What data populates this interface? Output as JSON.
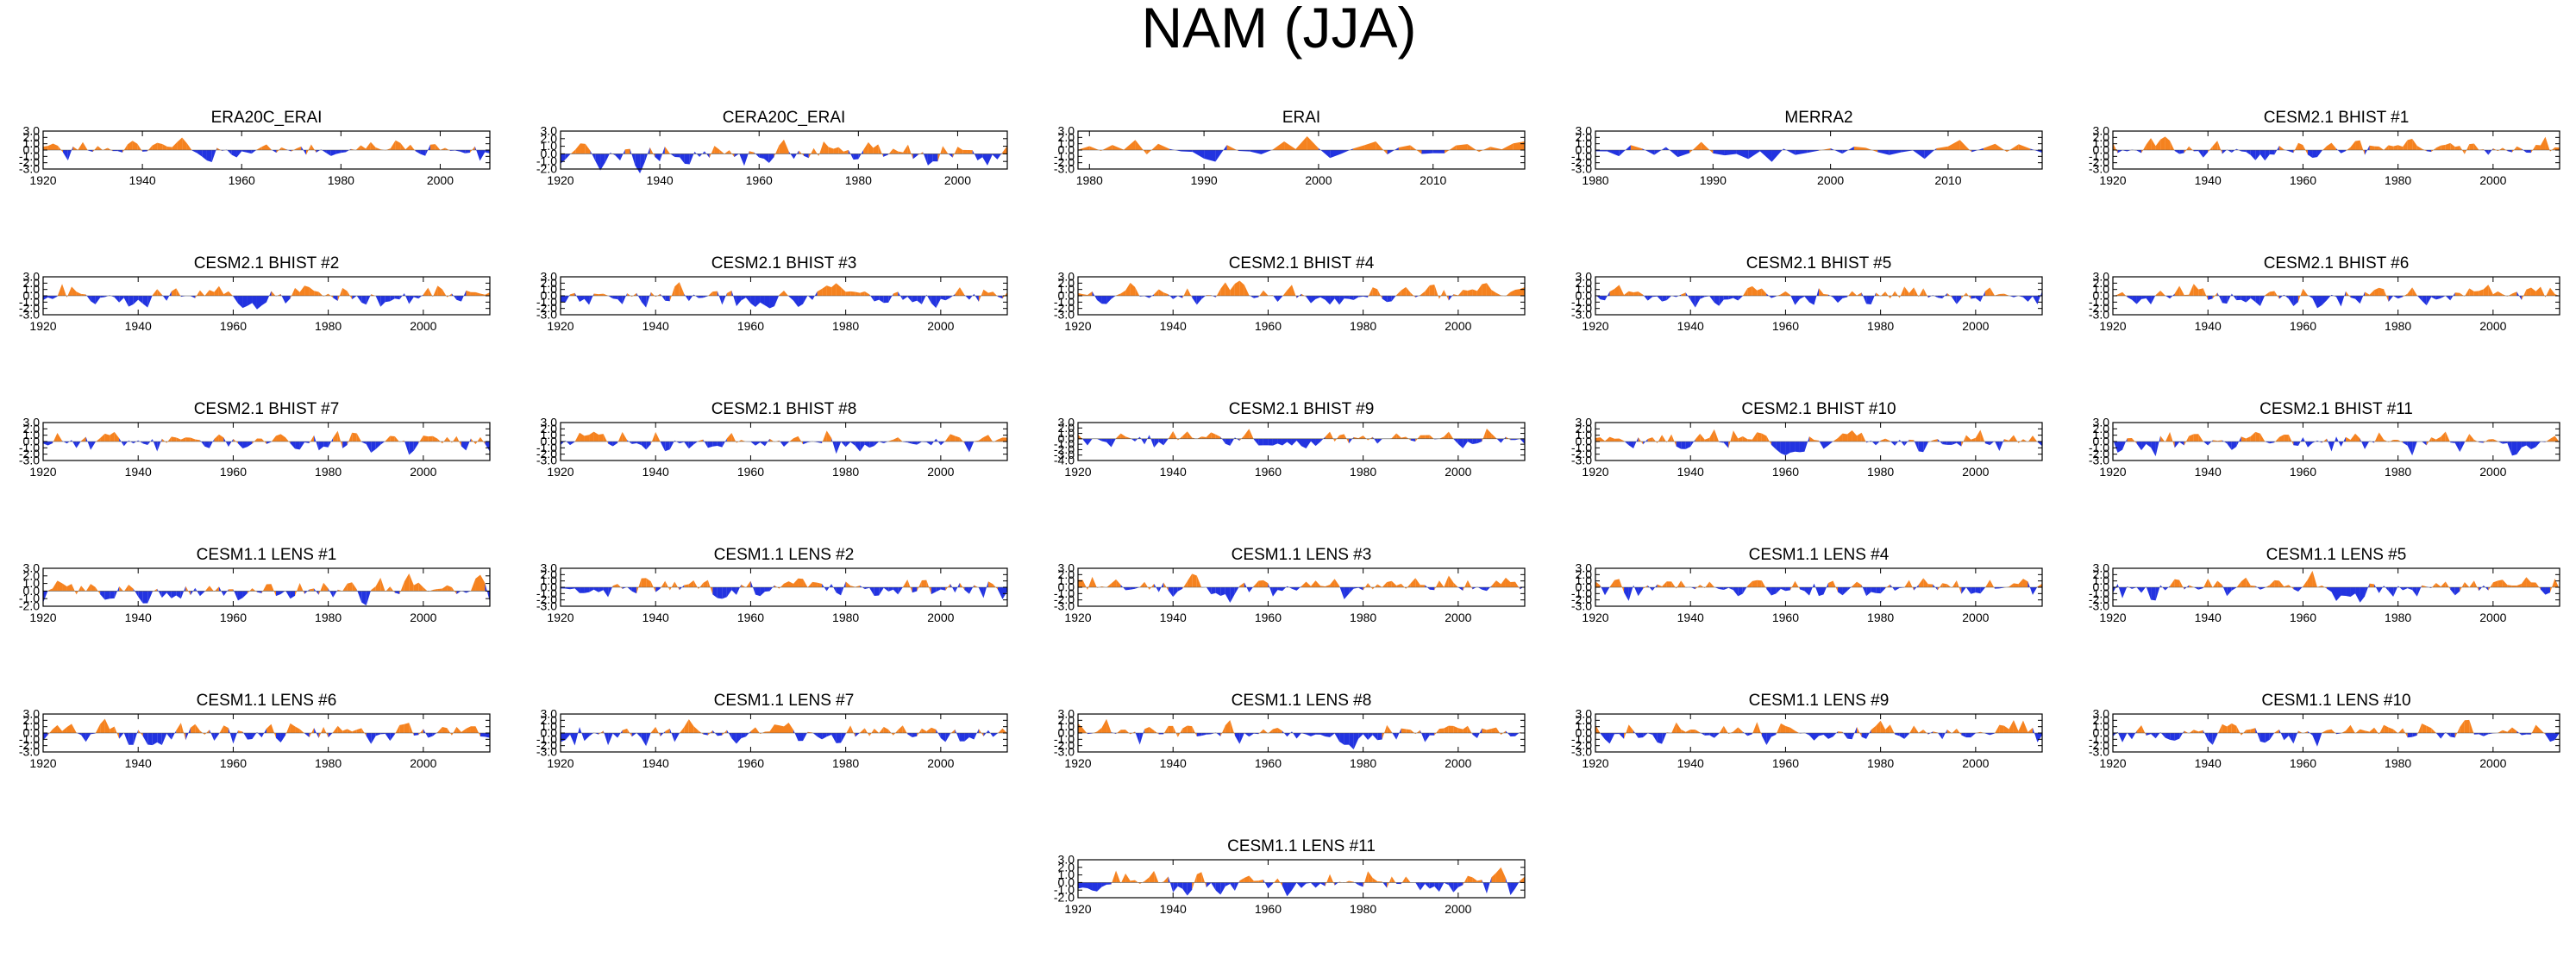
{
  "title": "NAM (JJA)",
  "colors": {
    "positive": "#f5821f",
    "negative": "#2233e0",
    "frame": "#000000"
  },
  "chart_data": [
    {
      "type": "area",
      "title": "ERA20C_ERAI",
      "x_range": [
        1920,
        2010
      ],
      "x_ticks": [
        "1920",
        "1940",
        "1960",
        "1980",
        "2000"
      ],
      "ylim": [
        -3,
        3
      ],
      "y_ticks": [
        "3.0",
        "2.0",
        "1.0",
        "0.0",
        "-1.0",
        "-2.0",
        "-3.0"
      ],
      "seed": 1
    },
    {
      "type": "area",
      "title": "CERA20C_ERAI",
      "x_range": [
        1920,
        2010
      ],
      "x_ticks": [
        "1920",
        "1940",
        "1960",
        "1980",
        "2000"
      ],
      "ylim": [
        -2,
        3
      ],
      "y_ticks": [
        "3.0",
        "2.0",
        "1.0",
        "0.0",
        "-1.0",
        "-2.0"
      ],
      "seed": 2
    },
    {
      "type": "area",
      "title": "ERAI",
      "x_range": [
        1979,
        2018
      ],
      "x_ticks": [
        "1980",
        "1990",
        "2000",
        "2010"
      ],
      "ylim": [
        -3,
        3
      ],
      "y_ticks": [
        "3.0",
        "2.0",
        "1.0",
        "0.0",
        "-1.0",
        "-2.0",
        "-3.0"
      ],
      "seed": 3
    },
    {
      "type": "area",
      "title": "MERRA2",
      "x_range": [
        1980,
        2018
      ],
      "x_ticks": [
        "1980",
        "1990",
        "2000",
        "2010"
      ],
      "ylim": [
        -3,
        3
      ],
      "y_ticks": [
        "3.0",
        "2.0",
        "1.0",
        "0.0",
        "-1.0",
        "-2.0",
        "-3.0"
      ],
      "seed": 4
    },
    {
      "type": "area",
      "title": "CESM2.1 BHIST #1",
      "x_range": [
        1920,
        2014
      ],
      "x_ticks": [
        "1920",
        "1940",
        "1960",
        "1980",
        "2000"
      ],
      "ylim": [
        -3,
        3
      ],
      "y_ticks": [
        "3.0",
        "2.0",
        "1.0",
        "0.0",
        "-1.0",
        "-2.0",
        "-3.0"
      ],
      "seed": 5
    },
    {
      "type": "area",
      "title": "CESM2.1 BHIST #2",
      "x_range": [
        1920,
        2014
      ],
      "x_ticks": [
        "1920",
        "1940",
        "1960",
        "1980",
        "2000"
      ],
      "ylim": [
        -3,
        3
      ],
      "y_ticks": [
        "3.0",
        "2.0",
        "1.0",
        "0.0",
        "-1.0",
        "-2.0",
        "-3.0"
      ],
      "seed": 6
    },
    {
      "type": "area",
      "title": "CESM2.1 BHIST #3",
      "x_range": [
        1920,
        2014
      ],
      "x_ticks": [
        "1920",
        "1940",
        "1960",
        "1980",
        "2000"
      ],
      "ylim": [
        -3,
        3
      ],
      "y_ticks": [
        "3.0",
        "2.0",
        "1.0",
        "0.0",
        "-1.0",
        "-2.0",
        "-3.0"
      ],
      "seed": 7
    },
    {
      "type": "area",
      "title": "CESM2.1 BHIST #4",
      "x_range": [
        1920,
        2014
      ],
      "x_ticks": [
        "1920",
        "1940",
        "1960",
        "1980",
        "2000"
      ],
      "ylim": [
        -3,
        3
      ],
      "y_ticks": [
        "3.0",
        "2.0",
        "1.0",
        "0.0",
        "-1.0",
        "-2.0",
        "-3.0"
      ],
      "seed": 8
    },
    {
      "type": "area",
      "title": "CESM2.1 BHIST #5",
      "x_range": [
        1920,
        2014
      ],
      "x_ticks": [
        "1920",
        "1940",
        "1960",
        "1980",
        "2000"
      ],
      "ylim": [
        -3,
        3
      ],
      "y_ticks": [
        "3.0",
        "2.0",
        "1.0",
        "0.0",
        "-1.0",
        "-2.0",
        "-3.0"
      ],
      "seed": 9
    },
    {
      "type": "area",
      "title": "CESM2.1 BHIST #6",
      "x_range": [
        1920,
        2014
      ],
      "x_ticks": [
        "1920",
        "1940",
        "1960",
        "1980",
        "2000"
      ],
      "ylim": [
        -3,
        3
      ],
      "y_ticks": [
        "3.0",
        "2.0",
        "1.0",
        "0.0",
        "-1.0",
        "-2.0",
        "-3.0"
      ],
      "seed": 10
    },
    {
      "type": "area",
      "title": "CESM2.1 BHIST #7",
      "x_range": [
        1920,
        2014
      ],
      "x_ticks": [
        "1920",
        "1940",
        "1960",
        "1980",
        "2000"
      ],
      "ylim": [
        -3,
        3
      ],
      "y_ticks": [
        "3.0",
        "2.0",
        "1.0",
        "0.0",
        "-1.0",
        "-2.0",
        "-3.0"
      ],
      "seed": 11
    },
    {
      "type": "area",
      "title": "CESM2.1 BHIST #8",
      "x_range": [
        1920,
        2014
      ],
      "x_ticks": [
        "1920",
        "1940",
        "1960",
        "1980",
        "2000"
      ],
      "ylim": [
        -3,
        3
      ],
      "y_ticks": [
        "3.0",
        "2.0",
        "1.0",
        "0.0",
        "-1.0",
        "-2.0",
        "-3.0"
      ],
      "seed": 12
    },
    {
      "type": "area",
      "title": "CESM2.1 BHIST #9",
      "x_range": [
        1920,
        2014
      ],
      "x_ticks": [
        "1920",
        "1940",
        "1960",
        "1980",
        "2000"
      ],
      "ylim": [
        -4,
        3
      ],
      "y_ticks": [
        "3.0",
        "2.0",
        "1.0",
        "0.0",
        "-1.0",
        "-2.0",
        "-3.0",
        "-4.0"
      ],
      "seed": 13
    },
    {
      "type": "area",
      "title": "CESM2.1 BHIST #10",
      "x_range": [
        1920,
        2014
      ],
      "x_ticks": [
        "1920",
        "1940",
        "1960",
        "1980",
        "2000"
      ],
      "ylim": [
        -3,
        3
      ],
      "y_ticks": [
        "3.0",
        "2.0",
        "1.0",
        "0.0",
        "-1.0",
        "-2.0",
        "-3.0"
      ],
      "seed": 14
    },
    {
      "type": "area",
      "title": "CESM2.1 BHIST #11",
      "x_range": [
        1920,
        2014
      ],
      "x_ticks": [
        "1920",
        "1940",
        "1960",
        "1980",
        "2000"
      ],
      "ylim": [
        -3,
        3
      ],
      "y_ticks": [
        "3.0",
        "2.0",
        "1.0",
        "0.0",
        "-1.0",
        "-2.0",
        "-3.0"
      ],
      "seed": 15
    },
    {
      "type": "area",
      "title": "CESM1.1 LENS #1",
      "x_range": [
        1920,
        2014
      ],
      "x_ticks": [
        "1920",
        "1940",
        "1960",
        "1980",
        "2000"
      ],
      "ylim": [
        -2,
        3
      ],
      "y_ticks": [
        "3.0",
        "2.0",
        "1.0",
        "0.0",
        "-1.0",
        "-2.0"
      ],
      "seed": 16
    },
    {
      "type": "area",
      "title": "CESM1.1 LENS #2",
      "x_range": [
        1920,
        2014
      ],
      "x_ticks": [
        "1920",
        "1940",
        "1960",
        "1980",
        "2000"
      ],
      "ylim": [
        -3,
        3
      ],
      "y_ticks": [
        "3.0",
        "2.0",
        "1.0",
        "0.0",
        "-1.0",
        "-2.0",
        "-3.0"
      ],
      "seed": 17
    },
    {
      "type": "area",
      "title": "CESM1.1 LENS #3",
      "x_range": [
        1920,
        2014
      ],
      "x_ticks": [
        "1920",
        "1940",
        "1960",
        "1980",
        "2000"
      ],
      "ylim": [
        -3,
        3
      ],
      "y_ticks": [
        "3.0",
        "2.0",
        "1.0",
        "0.0",
        "-1.0",
        "-2.0",
        "-3.0"
      ],
      "seed": 18
    },
    {
      "type": "area",
      "title": "CESM1.1 LENS #4",
      "x_range": [
        1920,
        2014
      ],
      "x_ticks": [
        "1920",
        "1940",
        "1960",
        "1980",
        "2000"
      ],
      "ylim": [
        -3,
        3
      ],
      "y_ticks": [
        "3.0",
        "2.0",
        "1.0",
        "0.0",
        "-1.0",
        "-2.0",
        "-3.0"
      ],
      "seed": 19
    },
    {
      "type": "area",
      "title": "CESM1.1 LENS #5",
      "x_range": [
        1920,
        2014
      ],
      "x_ticks": [
        "1920",
        "1940",
        "1960",
        "1980",
        "2000"
      ],
      "ylim": [
        -3,
        3
      ],
      "y_ticks": [
        "3.0",
        "2.0",
        "1.0",
        "0.0",
        "-1.0",
        "-2.0",
        "-3.0"
      ],
      "seed": 20
    },
    {
      "type": "area",
      "title": "CESM1.1 LENS #6",
      "x_range": [
        1920,
        2014
      ],
      "x_ticks": [
        "1920",
        "1940",
        "1960",
        "1980",
        "2000"
      ],
      "ylim": [
        -3,
        3
      ],
      "y_ticks": [
        "3.0",
        "2.0",
        "1.0",
        "0.0",
        "-1.0",
        "-2.0",
        "-3.0"
      ],
      "seed": 21
    },
    {
      "type": "area",
      "title": "CESM1.1 LENS #7",
      "x_range": [
        1920,
        2014
      ],
      "x_ticks": [
        "1920",
        "1940",
        "1960",
        "1980",
        "2000"
      ],
      "ylim": [
        -3,
        3
      ],
      "y_ticks": [
        "3.0",
        "2.0",
        "1.0",
        "0.0",
        "-1.0",
        "-2.0",
        "-3.0"
      ],
      "seed": 22
    },
    {
      "type": "area",
      "title": "CESM1.1 LENS #8",
      "x_range": [
        1920,
        2014
      ],
      "x_ticks": [
        "1920",
        "1940",
        "1960",
        "1980",
        "2000"
      ],
      "ylim": [
        -3,
        3
      ],
      "y_ticks": [
        "3.0",
        "2.0",
        "1.0",
        "0.0",
        "-1.0",
        "-2.0",
        "-3.0"
      ],
      "seed": 23
    },
    {
      "type": "area",
      "title": "CESM1.1 LENS #9",
      "x_range": [
        1920,
        2014
      ],
      "x_ticks": [
        "1920",
        "1940",
        "1960",
        "1980",
        "2000"
      ],
      "ylim": [
        -3,
        3
      ],
      "y_ticks": [
        "3.0",
        "2.0",
        "1.0",
        "0.0",
        "-1.0",
        "-2.0",
        "-3.0"
      ],
      "seed": 24
    },
    {
      "type": "area",
      "title": "CESM1.1 LENS #10",
      "x_range": [
        1920,
        2014
      ],
      "x_ticks": [
        "1920",
        "1940",
        "1960",
        "1980",
        "2000"
      ],
      "ylim": [
        -3,
        3
      ],
      "y_ticks": [
        "3.0",
        "2.0",
        "1.0",
        "0.0",
        "-1.0",
        "-2.0",
        "-3.0"
      ],
      "seed": 25
    },
    {
      "type": "area",
      "title": "CESM1.1 LENS #11",
      "x_range": [
        1920,
        2014
      ],
      "x_ticks": [
        "1920",
        "1940",
        "1960",
        "1980",
        "2000"
      ],
      "ylim": [
        -2,
        3
      ],
      "y_ticks": [
        "3.0",
        "2.0",
        "1.0",
        "0.0",
        "-1.0",
        "-2.0"
      ],
      "seed": 26
    }
  ]
}
